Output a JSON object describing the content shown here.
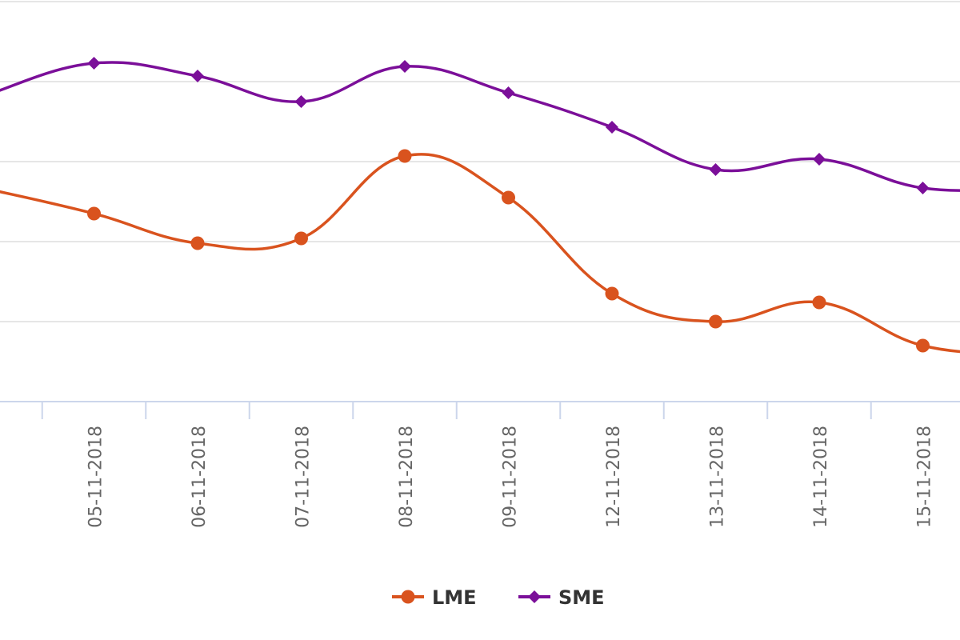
{
  "chart_data": {
    "type": "line",
    "title": "",
    "xlabel": "",
    "ylabel": "",
    "categories": [
      "",
      "05-11-2018",
      "06-11-2018",
      "07-11-2018",
      "08-11-2018",
      "09-11-2018",
      "12-11-2018",
      "13-11-2018",
      "14-11-2018",
      "15-11-2018",
      ""
    ],
    "ylim": [
      0,
      5
    ],
    "grid": true,
    "legend_position": "bottom-center",
    "series": [
      {
        "name": "LME",
        "color": "#d9531e",
        "marker": "circle",
        "values": [
          2.65,
          2.35,
          1.98,
          2.04,
          3.07,
          2.55,
          1.35,
          1.0,
          1.24,
          0.7,
          0.6
        ]
      },
      {
        "name": "SME",
        "color": "#7b0f99",
        "marker": "diamond",
        "values": [
          3.85,
          4.23,
          4.07,
          3.75,
          4.19,
          3.86,
          3.43,
          2.9,
          3.03,
          2.67,
          2.67
        ]
      }
    ]
  }
}
